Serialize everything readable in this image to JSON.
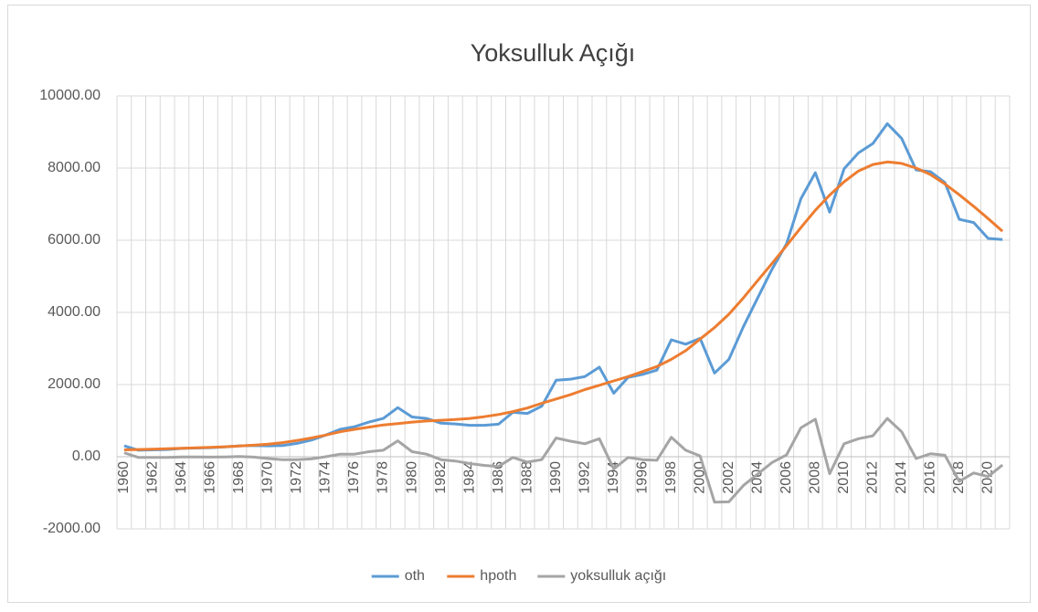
{
  "chart_data": {
    "type": "line",
    "title": "Yoksulluk Açığı",
    "categories": [
      "1960",
      null,
      "1962",
      null,
      "1964",
      null,
      "1966",
      null,
      "1968",
      null,
      "1970",
      null,
      "1972",
      null,
      "1974",
      null,
      "1976",
      null,
      "1978",
      null,
      "1980",
      null,
      "1982",
      null,
      "1984",
      null,
      "1986",
      null,
      "1988",
      null,
      "1990",
      null,
      "1992",
      null,
      "1994",
      null,
      "1996",
      null,
      "1998",
      null,
      "2000",
      null,
      "2002",
      null,
      "2004",
      null,
      "2006",
      null,
      "2008",
      null,
      "2010",
      null,
      "2012",
      null,
      "2014",
      null,
      "2016",
      null,
      "2018",
      null,
      "2020",
      null
    ],
    "series": [
      {
        "name": "oth",
        "color": "#5b9bd5",
        "values": [
          300,
          180,
          190,
          200,
          230,
          240,
          250,
          270,
          300,
          310,
          300,
          310,
          370,
          460,
          600,
          760,
          830,
          960,
          1060,
          1360,
          1100,
          1060,
          930,
          910,
          870,
          870,
          900,
          1230,
          1200,
          1400,
          2120,
          2150,
          2220,
          2480,
          1760,
          2200,
          2280,
          2400,
          3240,
          3120,
          3280,
          2320,
          2700,
          3600,
          4400,
          5200,
          5900,
          7150,
          7870,
          6780,
          7980,
          8420,
          8680,
          9230,
          8820,
          7950,
          7900,
          7600,
          6580,
          6490,
          6050,
          6020
        ]
      },
      {
        "name": "hpoth",
        "color": "#ed7d31",
        "values": [
          190,
          200,
          210,
          220,
          235,
          245,
          260,
          275,
          295,
          320,
          350,
          390,
          450,
          520,
          600,
          690,
          760,
          820,
          880,
          920,
          960,
          990,
          1010,
          1030,
          1060,
          1110,
          1170,
          1250,
          1350,
          1480,
          1600,
          1720,
          1860,
          1980,
          2100,
          2220,
          2360,
          2500,
          2700,
          2940,
          3260,
          3580,
          3950,
          4400,
          4880,
          5360,
          5850,
          6350,
          6830,
          7250,
          7620,
          7920,
          8100,
          8170,
          8130,
          8000,
          7820,
          7560,
          7260,
          6940,
          6600,
          6250
        ]
      },
      {
        "name": "yoksulluk açığı",
        "color": "#a5a5a5",
        "values": [
          110,
          -20,
          -20,
          -20,
          -5,
          -5,
          -10,
          -5,
          5,
          -10,
          -50,
          -80,
          -80,
          -60,
          0,
          70,
          70,
          140,
          180,
          440,
          140,
          70,
          -80,
          -120,
          -190,
          -240,
          -270,
          -20,
          -150,
          -80,
          520,
          430,
          360,
          500,
          -340,
          -20,
          -80,
          -100,
          540,
          180,
          20,
          -1260,
          -1250,
          -800,
          -480,
          -160,
          50,
          800,
          1040,
          -470,
          360,
          500,
          580,
          1060,
          690,
          -50,
          80,
          40,
          -680,
          -450,
          -550,
          -230
        ]
      }
    ],
    "ylim": [
      -2000,
      10000
    ],
    "yticks": [
      {
        "value": -2000,
        "label": "-2000.00"
      },
      {
        "value": 0,
        "label": "0.00"
      },
      {
        "value": 2000,
        "label": "2000.00"
      },
      {
        "value": 4000,
        "label": "4000.00"
      },
      {
        "value": 6000,
        "label": "6000.00"
      },
      {
        "value": 8000,
        "label": "8000.00"
      },
      {
        "value": 10000,
        "label": "10000.00"
      }
    ],
    "grid": true,
    "xgrid": true,
    "legend": "bottom"
  }
}
